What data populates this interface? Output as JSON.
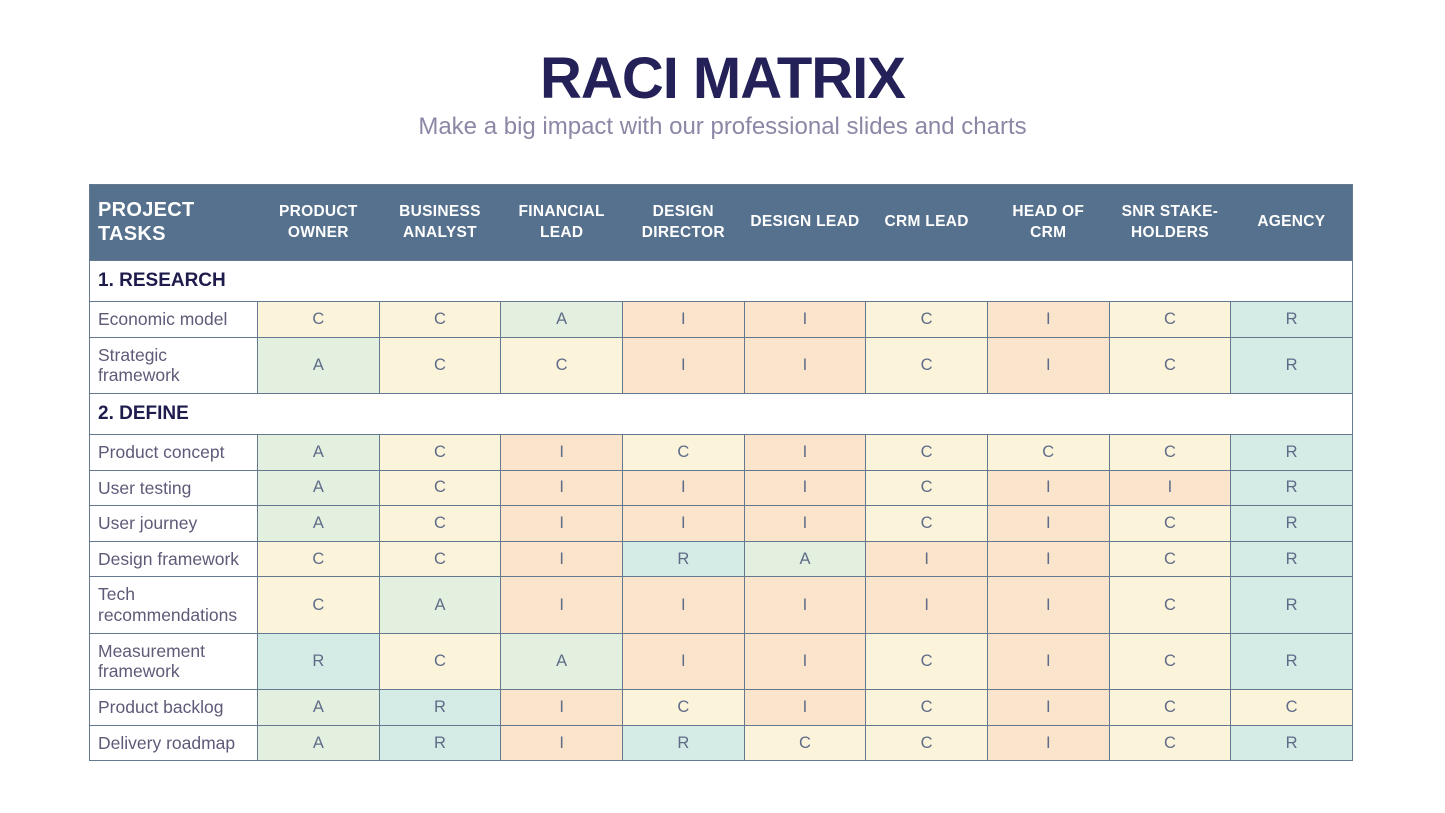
{
  "page": {
    "title": "RACI MATRIX",
    "subtitle": "Make a big impact with our professional slides and charts"
  },
  "colors": {
    "header_bg": "#56718D",
    "border": "#64788F",
    "title": "#232158",
    "subtitle": "#8B88A6",
    "section_text": "#1E1B4D",
    "task_text": "#5E5A78",
    "letter_text": "#5F6C88",
    "R": "#D5EBE5",
    "A": "#E3EFDF",
    "C": "#FCF3DB",
    "I": "#FAE4CC"
  },
  "table": {
    "columns": [
      "PROJECT TASKS",
      "PRODUCT OWNER",
      "BUSINESS ANALYST",
      "FINANCIAL LEAD",
      "DESIGN DIRECTOR",
      "DESIGN LEAD",
      "CRM LEAD",
      "HEAD OF CRM",
      "SNR STAKE-HOLDERS",
      "AGENCY"
    ],
    "sections": [
      {
        "label": "1. RESEARCH",
        "rows": [
          {
            "task": "Economic model",
            "values": [
              "C",
              "C",
              "A",
              "I",
              "I",
              "C",
              "I",
              "C",
              "R"
            ]
          },
          {
            "task": "Strategic framework",
            "values": [
              "A",
              "C",
              "C",
              "I",
              "I",
              "C",
              "I",
              "C",
              "R"
            ]
          }
        ]
      },
      {
        "label": "2. DEFINE",
        "rows": [
          {
            "task": "Product concept",
            "values": [
              "A",
              "C",
              "I",
              "C",
              "I",
              "C",
              "C",
              "C",
              "R"
            ]
          },
          {
            "task": "User testing",
            "values": [
              "A",
              "C",
              "I",
              "I",
              "I",
              "C",
              "I",
              "I",
              "R"
            ]
          },
          {
            "task": "User journey",
            "values": [
              "A",
              "C",
              "I",
              "I",
              "I",
              "C",
              "I",
              "C",
              "R"
            ]
          },
          {
            "task": "Design framework",
            "values": [
              "C",
              "C",
              "I",
              "R",
              "A",
              "I",
              "I",
              "C",
              "R"
            ]
          },
          {
            "task": "Tech recommendations",
            "values": [
              "C",
              "A",
              "I",
              "I",
              "I",
              "I",
              "I",
              "C",
              "R"
            ]
          },
          {
            "task": "Measurement framework",
            "values": [
              "R",
              "C",
              "A",
              "I",
              "I",
              "C",
              "I",
              "C",
              "R"
            ]
          },
          {
            "task": "Product backlog",
            "values": [
              "A",
              "R",
              "I",
              "C",
              "I",
              "C",
              "I",
              "C",
              "C"
            ]
          },
          {
            "task": "Delivery roadmap",
            "values": [
              "A",
              "R",
              "I",
              "R",
              "C",
              "C",
              "I",
              "C",
              "R"
            ]
          }
        ]
      }
    ]
  }
}
